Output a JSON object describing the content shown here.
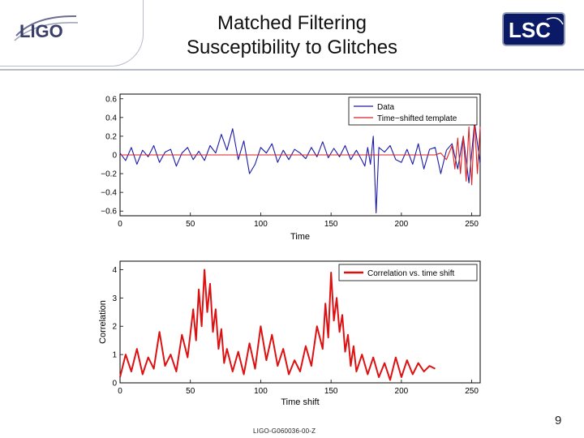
{
  "slide": {
    "title_line1": "Matched Filtering",
    "title_line2": "Susceptibility to Glitches",
    "logo_left": "LIGO",
    "logo_right": "LSC",
    "page_number": "9",
    "doc_id": "LIGO-G060036-00-Z"
  },
  "chart_data": [
    {
      "type": "line",
      "title": "",
      "xlabel": "Time",
      "ylabel": "",
      "xlim": [
        0,
        256
      ],
      "ylim": [
        -0.65,
        0.65
      ],
      "xticks": [
        0,
        50,
        100,
        150,
        200,
        250
      ],
      "yticks": [
        0.6,
        0.4,
        0.2,
        0,
        -0.2,
        -0.4,
        -0.6
      ],
      "ytick_labels": [
        "0.6",
        "0.4",
        "0.2",
        "0",
        "−0.2",
        "−0.4",
        "−0.6"
      ],
      "legend": "top-right",
      "series": [
        {
          "name": "Data",
          "color": "#1a1aa8",
          "x": [
            0,
            4,
            8,
            12,
            16,
            20,
            24,
            28,
            32,
            36,
            40,
            44,
            48,
            52,
            56,
            60,
            64,
            68,
            72,
            76,
            80,
            84,
            88,
            92,
            96,
            100,
            104,
            108,
            112,
            116,
            120,
            124,
            128,
            132,
            136,
            140,
            144,
            148,
            152,
            156,
            160,
            164,
            168,
            172,
            174,
            176,
            178,
            180,
            182,
            184,
            188,
            192,
            196,
            200,
            204,
            208,
            212,
            216,
            220,
            224,
            228,
            232,
            236,
            240,
            244,
            248,
            252,
            256
          ],
          "y": [
            0.02,
            -0.06,
            0.08,
            -0.1,
            0.05,
            -0.02,
            0.1,
            -0.08,
            0.03,
            0.06,
            -0.12,
            0.02,
            0.08,
            -0.05,
            0.04,
            -0.06,
            0.1,
            0.02,
            0.22,
            0.05,
            0.28,
            -0.05,
            0.15,
            -0.2,
            -0.1,
            0.08,
            0.02,
            0.12,
            -0.08,
            0.05,
            -0.05,
            0.06,
            0.02,
            -0.04,
            0.08,
            -0.02,
            0.14,
            -0.03,
            0.07,
            -0.02,
            0.1,
            -0.05,
            0.05,
            -0.06,
            -0.12,
            0.08,
            -0.1,
            0.2,
            -0.62,
            0.08,
            0.03,
            0.1,
            -0.05,
            -0.08,
            0.06,
            -0.1,
            0.12,
            -0.15,
            0.06,
            0.08,
            -0.2,
            0.05,
            0.12,
            -0.15,
            0.2,
            -0.3,
            0.35,
            -0.1
          ]
        },
        {
          "name": "Time−shifted template",
          "color": "#dd2222",
          "x": [
            0,
            224,
            228,
            232,
            236,
            238,
            240,
            242,
            244,
            246,
            248,
            250,
            252,
            254,
            256
          ],
          "y": [
            0,
            0,
            0.02,
            -0.05,
            0.1,
            -0.15,
            0.18,
            -0.2,
            0.2,
            -0.28,
            0.3,
            -0.32,
            0.38,
            -0.2,
            0.3
          ]
        }
      ]
    },
    {
      "type": "line",
      "title": "",
      "xlabel": "Time shift",
      "ylabel": "Correlation",
      "xlim": [
        0,
        256
      ],
      "ylim": [
        0,
        4.3
      ],
      "xticks": [
        0,
        50,
        100,
        150,
        200,
        250
      ],
      "yticks": [
        0,
        1,
        2,
        3,
        4
      ],
      "legend": "top-right",
      "series": [
        {
          "name": "Correlation vs. time shift",
          "color": "#dd1111",
          "x": [
            0,
            4,
            8,
            12,
            16,
            20,
            24,
            28,
            32,
            36,
            40,
            44,
            48,
            52,
            54,
            56,
            58,
            60,
            62,
            64,
            66,
            68,
            70,
            72,
            74,
            76,
            80,
            84,
            88,
            92,
            96,
            100,
            104,
            108,
            112,
            116,
            120,
            124,
            128,
            132,
            136,
            140,
            144,
            146,
            148,
            150,
            152,
            154,
            156,
            158,
            160,
            162,
            164,
            166,
            168,
            172,
            176,
            180,
            184,
            188,
            192,
            196,
            200,
            204,
            208,
            212,
            216,
            220,
            224
          ],
          "y": [
            0.2,
            1.0,
            0.4,
            1.2,
            0.3,
            0.9,
            0.5,
            1.8,
            0.6,
            1.0,
            0.4,
            1.7,
            0.9,
            2.6,
            1.5,
            3.3,
            2.0,
            4.0,
            2.5,
            3.5,
            1.8,
            2.6,
            1.2,
            1.9,
            0.7,
            1.2,
            0.4,
            1.1,
            0.3,
            1.4,
            0.5,
            2.0,
            0.8,
            1.7,
            0.6,
            1.2,
            0.3,
            0.8,
            0.4,
            1.3,
            0.6,
            2.0,
            1.2,
            2.8,
            1.6,
            3.9,
            2.2,
            3.0,
            1.8,
            2.4,
            1.1,
            1.7,
            0.6,
            1.3,
            0.4,
            1.0,
            0.3,
            0.9,
            0.2,
            0.7,
            0.1,
            0.9,
            0.2,
            0.8,
            0.3,
            0.7,
            0.4,
            0.6,
            0.5
          ]
        }
      ]
    }
  ]
}
